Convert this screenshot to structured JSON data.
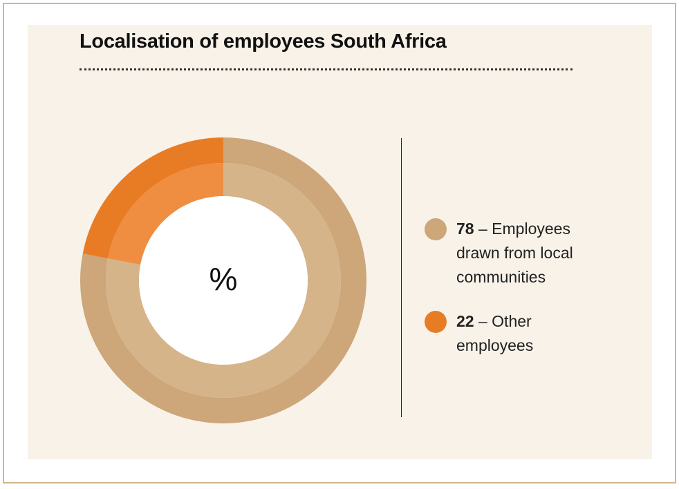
{
  "chart_data": {
    "type": "donut",
    "title": "Localisation of employees South Africa",
    "center_label": "%",
    "categories": [
      "Employees drawn from local communities",
      "Other employees"
    ],
    "values": [
      78,
      22
    ],
    "colors": [
      "#cda679",
      "#e87c25"
    ],
    "inner_colors": [
      "#d6b48a",
      "#ef8d40"
    ],
    "label_separator": "–"
  }
}
